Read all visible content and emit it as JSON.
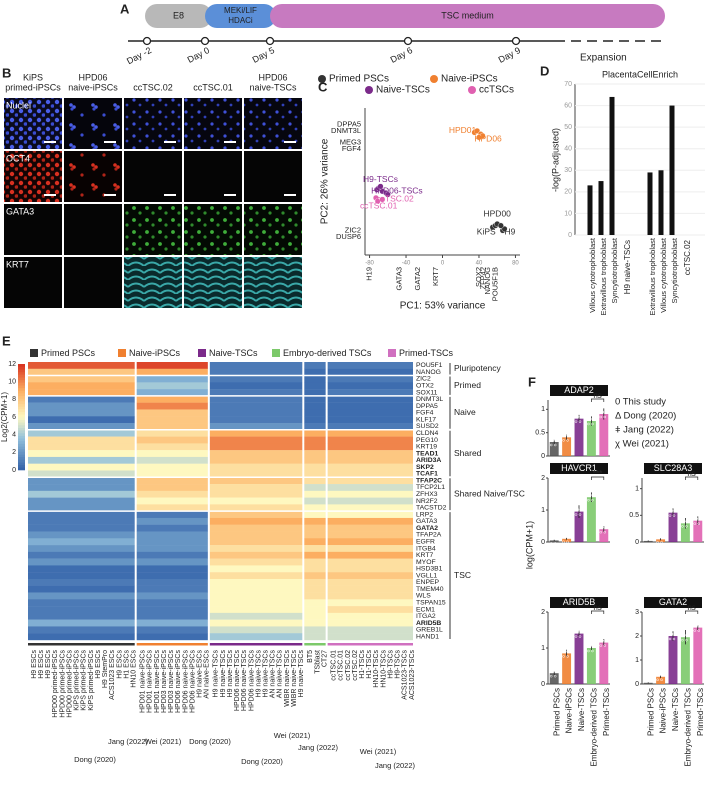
{
  "panel_labels": [
    "A",
    "B",
    "C",
    "D",
    "E",
    "F"
  ],
  "timeline": {
    "phases": [
      {
        "lines": [
          "E8"
        ],
        "color": "#b8b8b8"
      },
      {
        "lines": [
          "MEKi/LIF",
          "HDACi"
        ],
        "color": "#5b8fd8"
      },
      {
        "lines": [
          "TSC medium"
        ],
        "color": "#c77ac0"
      }
    ],
    "days": [
      "Day -2",
      "Day 0",
      "Day 5",
      "Day 6",
      "Day 9"
    ],
    "end_label": "Expansion"
  },
  "imaging": {
    "columns": [
      [
        "KiPS",
        "primed-iPSCs"
      ],
      [
        "HPD06",
        "naive-iPSCs"
      ],
      [
        "ccTSC.02"
      ],
      [
        "ccTSC.01"
      ],
      [
        "HPD06",
        "naive-TSCs"
      ]
    ],
    "rows": [
      "Nuclei",
      "OCT4",
      "GATA3",
      "KRT7"
    ]
  },
  "chart_data": [
    {
      "type": "scatter",
      "xlabel": "PC1: 53% variance",
      "ylabel": "PC2: 26% variance",
      "xlim": [
        -85,
        85
      ],
      "ylim": [
        -45,
        45
      ],
      "xticks": [
        -80,
        -40,
        0,
        40,
        80
      ],
      "series": [
        {
          "name": "Primed PSCs",
          "color": "#333333",
          "x": [
            55,
            58,
            66,
            68,
            60,
            64
          ],
          "values": [
            -28,
            -27,
            -30,
            -29,
            -26,
            -27
          ]
        },
        {
          "name": "Naive-iPSCs",
          "color": "#f08030",
          "x": [
            35,
            38,
            42,
            44,
            40
          ],
          "values": [
            30,
            31,
            29,
            28,
            27
          ]
        },
        {
          "name": "Naive-TSCs",
          "color": "#7b2a8a",
          "x": [
            -72,
            -70,
            -66,
            -62,
            -60,
            -68
          ],
          "values": [
            -5,
            -4,
            -6,
            -7,
            -8,
            -3
          ]
        },
        {
          "name": "ccTSCs",
          "color": "#e060b0",
          "x": [
            -73,
            -71,
            -66
          ],
          "values": [
            -10,
            -12,
            -11
          ]
        }
      ],
      "annotations": [
        {
          "text": "HPD01",
          "x": 22,
          "y": 31,
          "color": "#f08030"
        },
        {
          "text": "HPD06",
          "x": 50,
          "y": 26,
          "color": "#f08030"
        },
        {
          "text": "H9-TSCs",
          "x": -68,
          "y": 1,
          "color": "#7b2a8a"
        },
        {
          "text": "HPD06-TSCs",
          "x": -50,
          "y": -6,
          "color": "#7b2a8a"
        },
        {
          "text": "ccTSC.02",
          "x": -52,
          "y": -11,
          "color": "#e060b0"
        },
        {
          "text": "ccTSC.01",
          "x": -70,
          "y": -15,
          "color": "#e060b0"
        },
        {
          "text": "HPD00",
          "x": 60,
          "y": -20,
          "color": "#333333"
        },
        {
          "text": "KiPS",
          "x": 48,
          "y": -31,
          "color": "#333333"
        },
        {
          "text": "H9",
          "x": 74,
          "y": -31,
          "color": "#333333"
        }
      ],
      "y_loadings": [
        {
          "text": "DPPA5",
          "y": 35
        },
        {
          "text": "DNMT3L",
          "y": 31
        },
        {
          "text": "MEG3",
          "y": 24
        },
        {
          "text": "FGF4",
          "y": 20
        },
        {
          "text": "ZIC2",
          "y": -30
        },
        {
          "text": "DUSP6",
          "y": -34
        }
      ],
      "x_loadings": [
        {
          "text": "H19",
          "x": -80
        },
        {
          "text": "GATA3",
          "x": -47
        },
        {
          "text": "GATA2",
          "x": -27
        },
        {
          "text": "KRT7",
          "x": -7
        },
        {
          "text": "SOX2",
          "x": 40
        },
        {
          "text": "ZFP42",
          "x": 45
        },
        {
          "text": "NANOG",
          "x": 50
        },
        {
          "text": "POU5F1B",
          "x": 58
        }
      ]
    },
    {
      "type": "bar",
      "title": "PlacentaCellEnrich",
      "ylabel": "-log(P-adjusted)",
      "ylim": [
        0,
        70
      ],
      "yticks": [
        0,
        10,
        20,
        30,
        40,
        50,
        60,
        70
      ],
      "color": "#111111",
      "groups": [
        {
          "name": "H9 naive-TSCs",
          "categories": [
            "Villous cytotrophoblast",
            "Extravillous trophoblast",
            "Syncytiotrophoblast"
          ],
          "values": [
            23,
            25,
            64
          ]
        },
        {
          "name": "ccTSC.02",
          "categories": [
            "Extravillous trophoblast",
            "Villous cytotrophoblast",
            "Syncytiotrophoblast"
          ],
          "values": [
            29,
            30,
            60
          ]
        }
      ]
    },
    {
      "type": "heatmap",
      "legend": [
        {
          "name": "Primed PSCs",
          "color": "#333333"
        },
        {
          "name": "Naive-iPSCs",
          "color": "#f08030"
        },
        {
          "name": "Naive-TSCs",
          "color": "#7b2a8a"
        },
        {
          "name": "Embryo-derived TSCs",
          "color": "#7cc96a"
        },
        {
          "name": "Primed-TSCs",
          "color": "#d070c0"
        }
      ],
      "colorbar_label": "Log2(CPM+1)",
      "clim": [
        0,
        12
      ],
      "cticks": [
        0,
        2,
        4,
        6,
        8,
        10,
        12
      ],
      "emphasized": [
        "TEAD1",
        "ARID3A",
        "SKP2",
        "TCAF1",
        "TFAP2C",
        "GATA2",
        "ARID5B"
      ],
      "samples": [
        [
          "H9 ESCs",
          "H9 ESCs",
          "H9 ESCs",
          "HPD00 primed-iPSCs",
          "HPD00 primed-iPSCs",
          "HPD00 primed-iPSCs",
          "KiPS primed-iPSCs",
          "KiPS primed-iPSCs",
          "KiPS primed-iPSCs",
          "H9 ESCs",
          "H9 StemPro",
          "ACS1023 ESCs",
          "H9 ESCs",
          "H1 ESCs",
          "HN10 ESCs"
        ],
        [
          "HPD01 naive-iPSCs",
          "HPD01 naive-iPSCs",
          "HPD01 naive-iPSCs",
          "HPD03 naive-iPSCs",
          "HPD03 naive-iPSCs",
          "HPD06 naive-iPSCs",
          "HPD06 naive-iPSCs",
          "HPD06 naive-iPSCs",
          "H9 naive-ESCs",
          "AN naive-ESCs"
        ],
        [
          "H9 naive-TSCs",
          "H9 naive-TSCs",
          "H9 naive-TSCs",
          "HPD06 naive-TSCs",
          "HPD06 naive-TSCs",
          "HPD06 naive-TSCs",
          "H9 naive-TSCs",
          "H9 naive-TSCs",
          "AN naive-TSCs",
          "AN naive-TSCs",
          "WIBR naive-TSCs",
          "WIBR naive-TSCs",
          "H9 naive-TSCs"
        ],
        [
          "BT5",
          "TSblast",
          "CT27"
        ],
        [
          "ccTSC.01",
          "ccTSC.01",
          "ccTSC.02",
          "ccTSC.02",
          "H1-TSCs",
          "H1-TSCs",
          "HN10-TSCs",
          "HN10-TSCs",
          "H9-TSCs",
          "H9-TSCs",
          "ACS1023-TSCs",
          "ACS1023-TSCs"
        ]
      ],
      "sources": [
        "Dong (2020)",
        "Jang (2022)",
        "Wei (2021)",
        "Dong (2020)",
        "Dong (2020)",
        "Wei (2021)",
        "Jang (2022)",
        "Wei (2021)",
        "Jang (2022)"
      ],
      "blocks": [
        {
          "label": "Pluripotency",
          "genes": [
            {
              "name": "POU5F1",
              "values": [
                11,
                11.5,
                1,
                1,
                1
              ]
            },
            {
              "name": "NANOG",
              "values": [
                8,
                9,
                1,
                0.5,
                0.5
              ]
            }
          ]
        },
        {
          "label": "Primed",
          "genes": [
            {
              "name": "ZIC2",
              "values": [
                8,
                3,
                1,
                0.5,
                1
              ]
            },
            {
              "name": "OTX2",
              "values": [
                9,
                4,
                0.5,
                0.5,
                0.5
              ]
            },
            {
              "name": "SOX11",
              "values": [
                9,
                3,
                1,
                0.5,
                1
              ]
            }
          ]
        },
        {
          "label": "Naive",
          "genes": [
            {
              "name": "DNMT3L",
              "values": [
                1,
                9,
                1,
                0.5,
                0.5
              ]
            },
            {
              "name": "DPPA5",
              "values": [
                2,
                10,
                1,
                0.5,
                0.5
              ]
            },
            {
              "name": "FGF4",
              "values": [
                2,
                8,
                1,
                0.5,
                0.5
              ]
            },
            {
              "name": "KLF17",
              "values": [
                0.5,
                8,
                1,
                0.5,
                0.5
              ]
            },
            {
              "name": "SUSD2",
              "values": [
                2,
                8,
                2,
                1,
                1
              ]
            }
          ]
        },
        {
          "label": "Shared",
          "genes": [
            {
              "name": "CLDN4",
              "values": [
                4,
                7,
                9,
                9,
                9
              ]
            },
            {
              "name": "PEG10",
              "values": [
                7,
                8,
                10,
                10,
                10
              ]
            },
            {
              "name": "KRT19",
              "values": [
                7,
                7,
                10,
                10,
                10
              ]
            },
            {
              "name": "TEAD1",
              "values": [
                6,
                6,
                8,
                8,
                8
              ]
            },
            {
              "name": "ARID3A",
              "values": [
                4,
                5,
                8,
                8,
                8
              ]
            },
            {
              "name": "SKP2",
              "values": [
                6,
                6,
                7,
                7,
                7
              ]
            },
            {
              "name": "TCAF1",
              "values": [
                5,
                6,
                7,
                7,
                7
              ]
            }
          ]
        },
        {
          "label": "Shared Naive/TSC",
          "genes": [
            {
              "name": "TFAP2C",
              "values": [
                2,
                8,
                8,
                7,
                7
              ]
            },
            {
              "name": "TFCP2L1",
              "values": [
                2,
                8,
                7,
                5,
                5
              ]
            },
            {
              "name": "ZFHX3",
              "values": [
                4,
                7,
                7,
                6,
                6
              ]
            },
            {
              "name": "NR2F2",
              "values": [
                2,
                6,
                6,
                5,
                5
              ]
            },
            {
              "name": "TACSTD2",
              "values": [
                2,
                7,
                7,
                6,
                6
              ]
            }
          ]
        },
        {
          "label": "TSC",
          "genes": [
            {
              "name": "LRP2",
              "values": [
                1,
                1,
                8,
                6,
                6
              ]
            },
            {
              "name": "GATA3",
              "values": [
                1,
                2,
                9,
                9,
                9
              ]
            },
            {
              "name": "GATA2",
              "values": [
                1,
                1,
                8,
                8,
                8
              ]
            },
            {
              "name": "TFAP2A",
              "values": [
                2,
                2,
                8,
                8,
                8
              ]
            },
            {
              "name": "EGFR",
              "values": [
                3,
                2,
                8,
                9,
                9
              ]
            },
            {
              "name": "ITGB4",
              "values": [
                2,
                2,
                7,
                7,
                7
              ]
            },
            {
              "name": "KRT7",
              "values": [
                1,
                1,
                8,
                9,
                9
              ]
            },
            {
              "name": "MYOF",
              "values": [
                2,
                2,
                7,
                7,
                7
              ]
            },
            {
              "name": "HSD3B1",
              "values": [
                0.5,
                0.5,
                6,
                7,
                7
              ]
            },
            {
              "name": "VGLL1",
              "values": [
                0.5,
                0.5,
                7,
                8,
                8
              ]
            },
            {
              "name": "ENPEP",
              "values": [
                1,
                1,
                6,
                7,
                7
              ]
            },
            {
              "name": "TMEM40",
              "values": [
                0.5,
                1,
                6,
                7,
                7
              ]
            },
            {
              "name": "WLS",
              "values": [
                2,
                2,
                6,
                7,
                7
              ]
            },
            {
              "name": "TSPAN15",
              "values": [
                1,
                1,
                6,
                6,
                6
              ]
            },
            {
              "name": "ECM1",
              "values": [
                1,
                1,
                6,
                6,
                7
              ]
            },
            {
              "name": "ITGA2",
              "values": [
                1,
                1,
                5,
                6,
                6
              ]
            },
            {
              "name": "ARID5B",
              "values": [
                3,
                3,
                6,
                6,
                6
              ]
            },
            {
              "name": "GREB1L",
              "values": [
                1,
                1,
                5,
                5,
                5
              ]
            },
            {
              "name": "HAND1",
              "values": [
                0.5,
                0.5,
                4,
                5,
                5
              ]
            }
          ]
        }
      ]
    },
    {
      "type": "bar-panels",
      "ylabel": "log(CPM+1)",
      "categories": [
        "Primed PSCs",
        "Naive-iPSCs",
        "Naive-TSCs",
        "Embryo-derived TSCs",
        "Primed-TSCs"
      ],
      "colors": [
        "#555555",
        "#f08030",
        "#7b2a8a",
        "#7cc96a",
        "#e060b0"
      ],
      "legend": [
        "0 This study",
        "Δ Dong (2020)",
        "ǂ Jang (2022)",
        "χ Wei (2021)"
      ],
      "panels": [
        {
          "gene": "ADAP2",
          "ylim": [
            0,
            1.2
          ],
          "yticks": [
            0,
            0.5,
            1
          ],
          "values": [
            0.3,
            0.4,
            0.8,
            0.75,
            0.9
          ],
          "errors": [
            0.05,
            0.06,
            0.08,
            0.1,
            0.12
          ],
          "significance": "ns"
        },
        {
          "gene": "HAVCR1",
          "ylim": [
            0,
            2
          ],
          "yticks": [
            0,
            1,
            2
          ],
          "values": [
            0.05,
            0.1,
            0.95,
            1.4,
            0.4
          ],
          "errors": [
            0.02,
            0.03,
            0.2,
            0.15,
            0.1
          ],
          "significance": "***"
        },
        {
          "gene": "SLC28A3",
          "ylim": [
            0,
            1.2
          ],
          "yticks": [
            0,
            0.5,
            1
          ],
          "values": [
            0.02,
            0.05,
            0.55,
            0.35,
            0.4
          ],
          "errors": [
            0.01,
            0.02,
            0.08,
            0.1,
            0.08
          ],
          "significance": "ns"
        },
        {
          "gene": "ARID5B",
          "ylim": [
            0,
            2
          ],
          "yticks": [
            0,
            1,
            2
          ],
          "values": [
            0.3,
            0.85,
            1.4,
            1.0,
            1.15
          ],
          "errors": [
            0.05,
            0.1,
            0.08,
            0.06,
            0.1
          ],
          "significance": "ns"
        },
        {
          "gene": "GATA2",
          "ylim": [
            0,
            3
          ],
          "yticks": [
            0,
            1,
            2,
            3
          ],
          "values": [
            0.05,
            0.3,
            2.0,
            1.95,
            2.35
          ],
          "errors": [
            0.02,
            0.05,
            0.2,
            0.3,
            0.1
          ],
          "significance": "ns"
        }
      ]
    }
  ]
}
